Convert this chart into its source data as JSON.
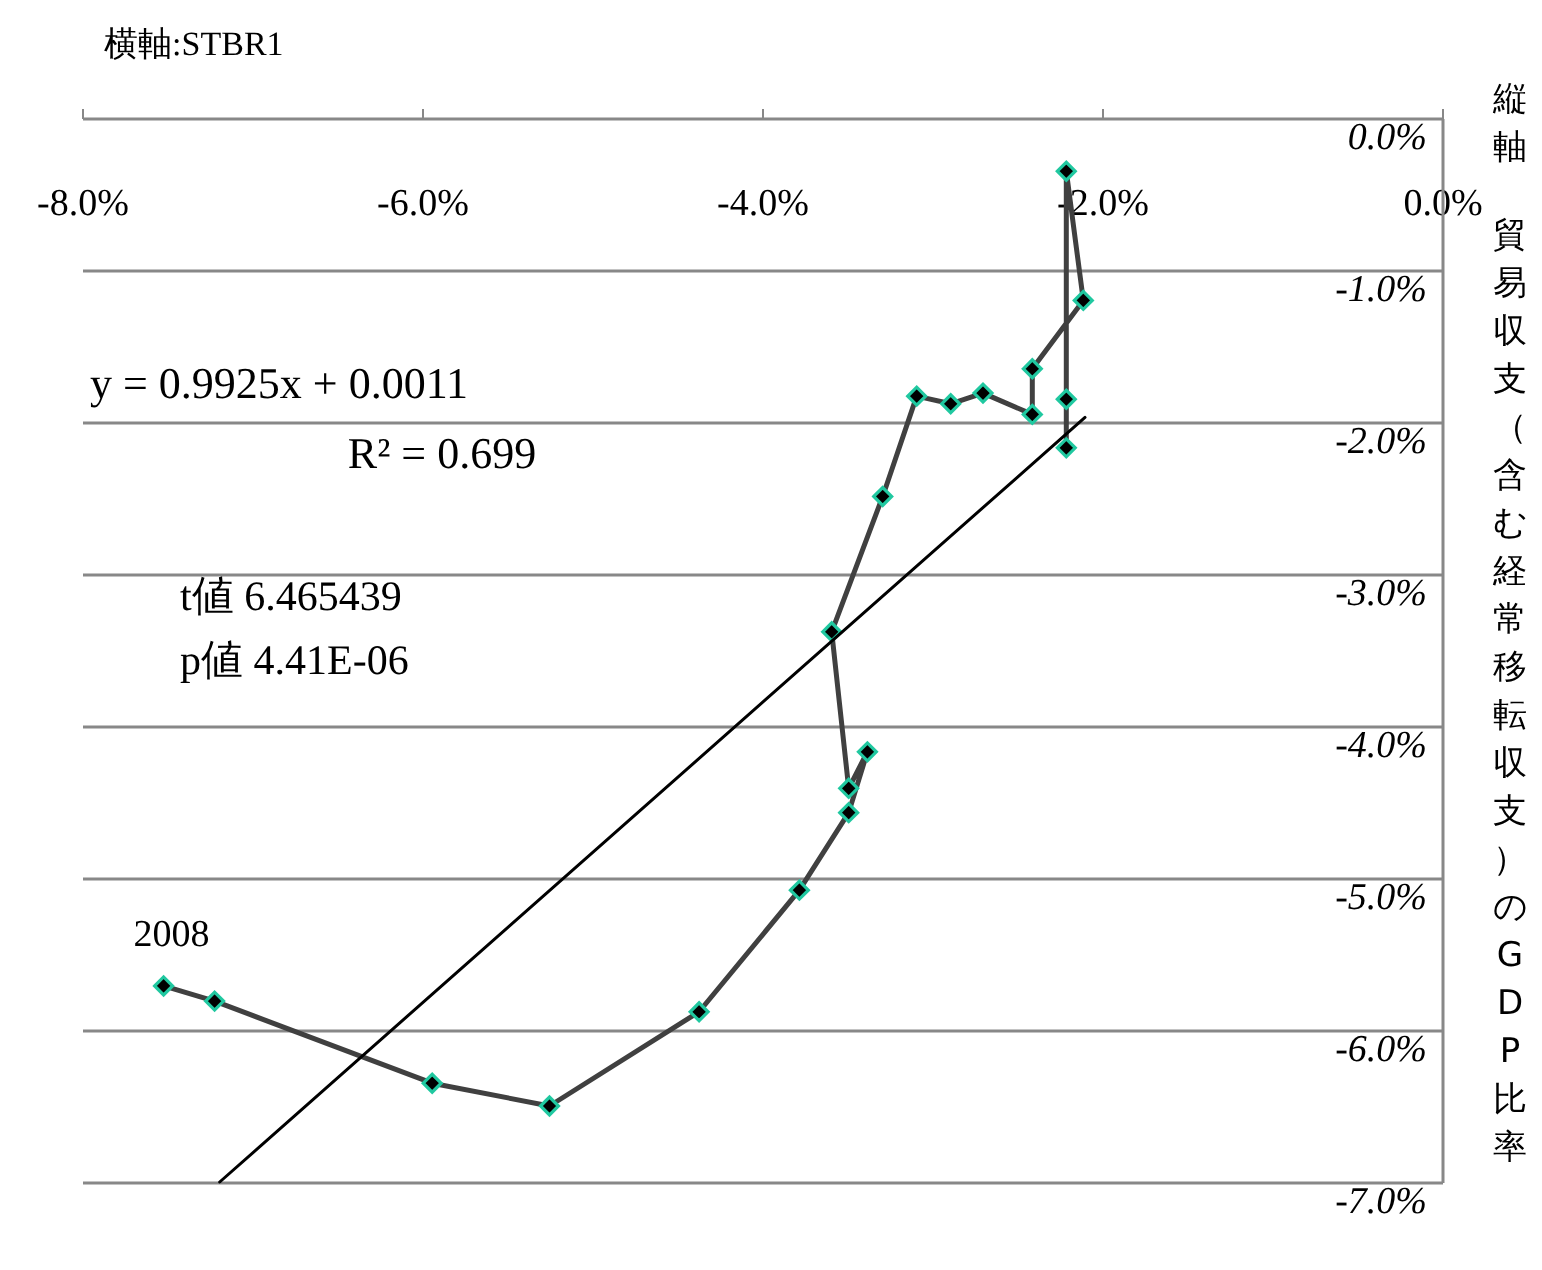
{
  "chart_data": {
    "type": "line",
    "title": "横軸:STBR1",
    "ylabel": "貿易収支（含む経常移転収支）のGDP比率",
    "xlim": [
      -8,
      0
    ],
    "xticks": [
      {
        "value": -8,
        "label": "-8.0%"
      },
      {
        "value": -6,
        "label": "-6.0%"
      },
      {
        "value": -4,
        "label": "-4.0%"
      },
      {
        "value": -2,
        "label": "-2.0%"
      },
      {
        "value": 0,
        "label": "0.0%"
      }
    ],
    "ylim": [
      -7,
      0
    ],
    "yticks": [
      {
        "value": 0,
        "label": "0.0%"
      },
      {
        "value": -1,
        "label": "-1.0%"
      },
      {
        "value": -2,
        "label": "-2.0%"
      },
      {
        "value": -3,
        "label": "-3.0%"
      },
      {
        "value": -4,
        "label": "-4.0%"
      },
      {
        "value": -5,
        "label": "-5.0%"
      },
      {
        "value": -6,
        "label": "-6.0%"
      },
      {
        "value": -7,
        "label": "-7.0%"
      }
    ],
    "grid": "y",
    "series": [
      {
        "marker": "diamond",
        "color": "#404040",
        "x": [
          -7.52,
          -7.22,
          -5.94,
          -5.25,
          -4.37,
          -3.78,
          -3.49,
          -3.38,
          -3.49,
          -3.59,
          -3.29,
          -3.09,
          -2.89,
          -2.7,
          -2.41,
          -2.41,
          -2.11,
          -2.21,
          -2.21,
          -2.21
        ],
        "values": [
          -5.71,
          -5.81,
          -6.35,
          -6.5,
          -5.88,
          -5.08,
          -4.57,
          -4.17,
          -4.41,
          -3.38,
          -2.49,
          -1.83,
          -1.88,
          -1.81,
          -1.95,
          -1.65,
          -1.2,
          -0.35,
          -1.85,
          -2.17
        ]
      },
      {
        "marker": "none",
        "color": "#000000",
        "x": [
          -7.19,
          -2.1
        ],
        "values": [
          -7.0,
          -1.97
        ]
      }
    ],
    "annotations": [
      "y = 0.9925x + 0.0011",
      "R² = 0.699",
      "t値 6.465439",
      "p値 4.41E-06",
      "縦軸",
      {
        "text": "2008",
        "x": -7.52,
        "y": -5.71
      }
    ]
  }
}
